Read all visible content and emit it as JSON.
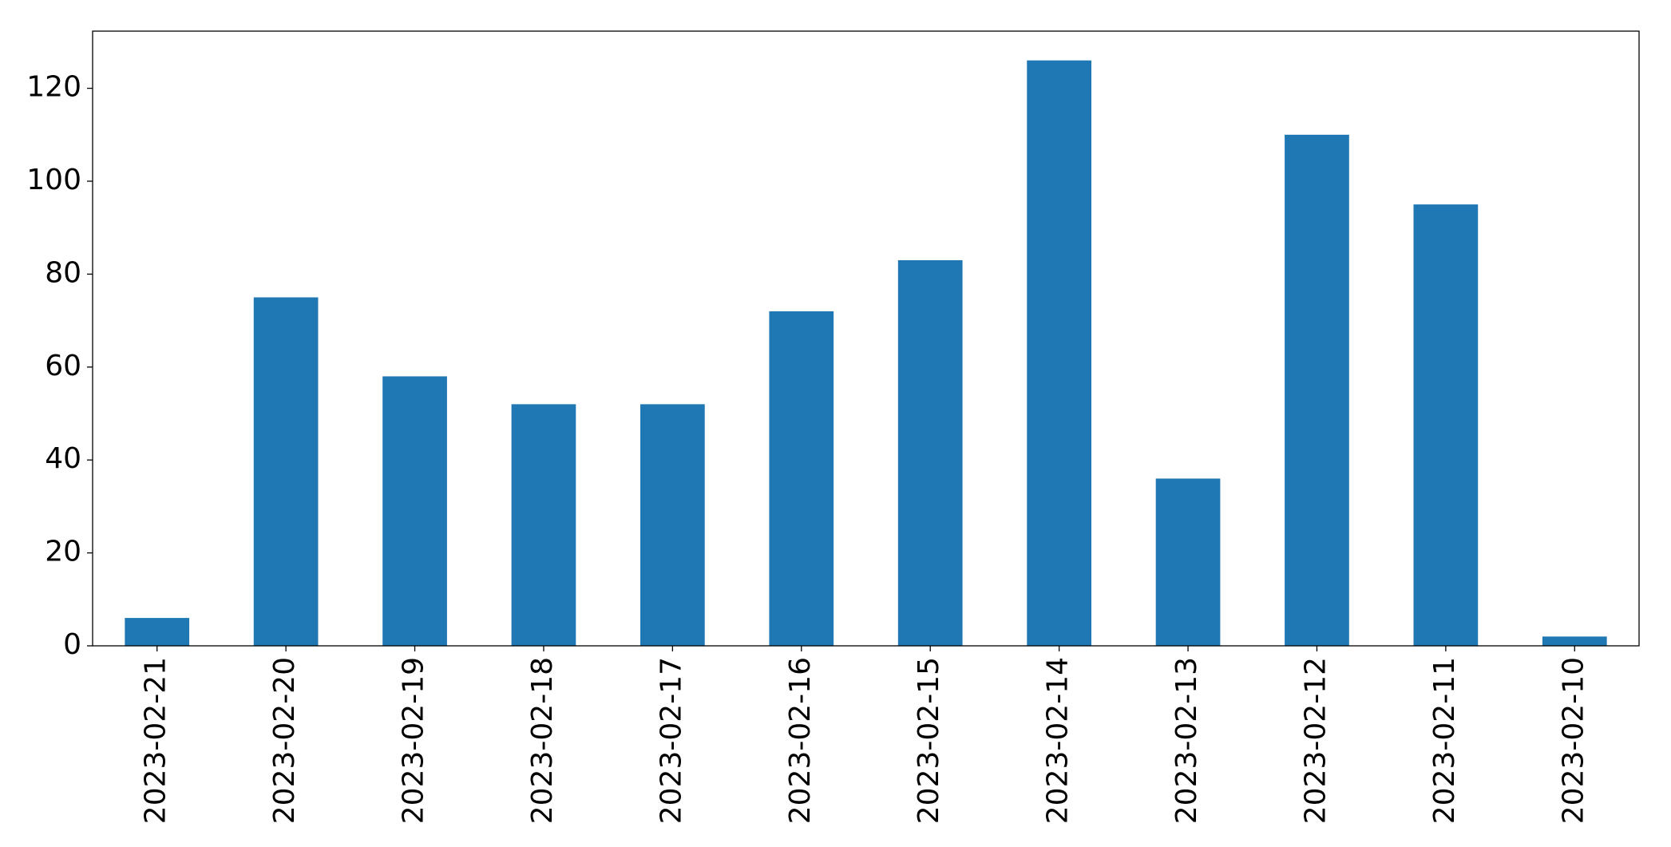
{
  "chart_data": {
    "type": "bar",
    "categories": [
      "2023-02-21",
      "2023-02-20",
      "2023-02-19",
      "2023-02-18",
      "2023-02-17",
      "2023-02-16",
      "2023-02-15",
      "2023-02-14",
      "2023-02-13",
      "2023-02-12",
      "2023-02-11",
      "2023-02-10"
    ],
    "values": [
      6,
      75,
      58,
      52,
      52,
      72,
      83,
      126,
      36,
      110,
      95,
      2
    ],
    "color": "#1f77b4",
    "ylim": [
      0,
      132.3
    ],
    "yticks": [
      0,
      20,
      40,
      60,
      80,
      100,
      120
    ],
    "grid": false
  }
}
